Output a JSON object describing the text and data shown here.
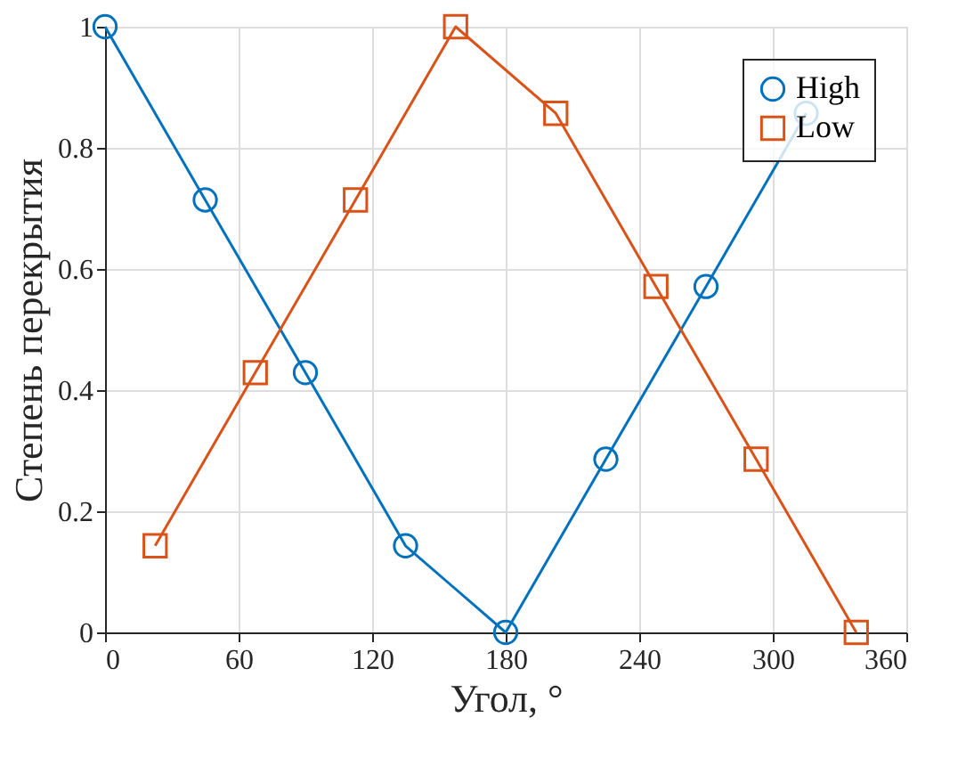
{
  "chart_data": {
    "type": "line",
    "xlabel": "Угол, °",
    "ylabel": "Степень перекрытия",
    "xlim": [
      0,
      360
    ],
    "xticks": [
      0,
      60,
      120,
      180,
      240,
      300,
      360
    ],
    "ylim": [
      0,
      1
    ],
    "yticks": [
      0,
      0.2,
      0.4,
      0.6,
      0.8,
      1
    ],
    "grid": true,
    "legend": "top right",
    "line_style": "solid",
    "series": [
      {
        "name": "High",
        "color": "#0072bd",
        "marker": "circle",
        "x": [
          0,
          45,
          90,
          135,
          180,
          225,
          270,
          315
        ],
        "values": [
          1,
          0.714,
          0.429,
          0.143,
          0,
          0.286,
          0.571,
          0.857
        ]
      },
      {
        "name": "Low",
        "color": "#d95319",
        "marker": "square",
        "x": [
          22.5,
          67.5,
          112.5,
          157.5,
          202.5,
          247.5,
          292.5,
          337.5
        ],
        "values": [
          0.143,
          0.429,
          0.714,
          1,
          0.857,
          0.571,
          0.286,
          0
        ]
      }
    ]
  }
}
